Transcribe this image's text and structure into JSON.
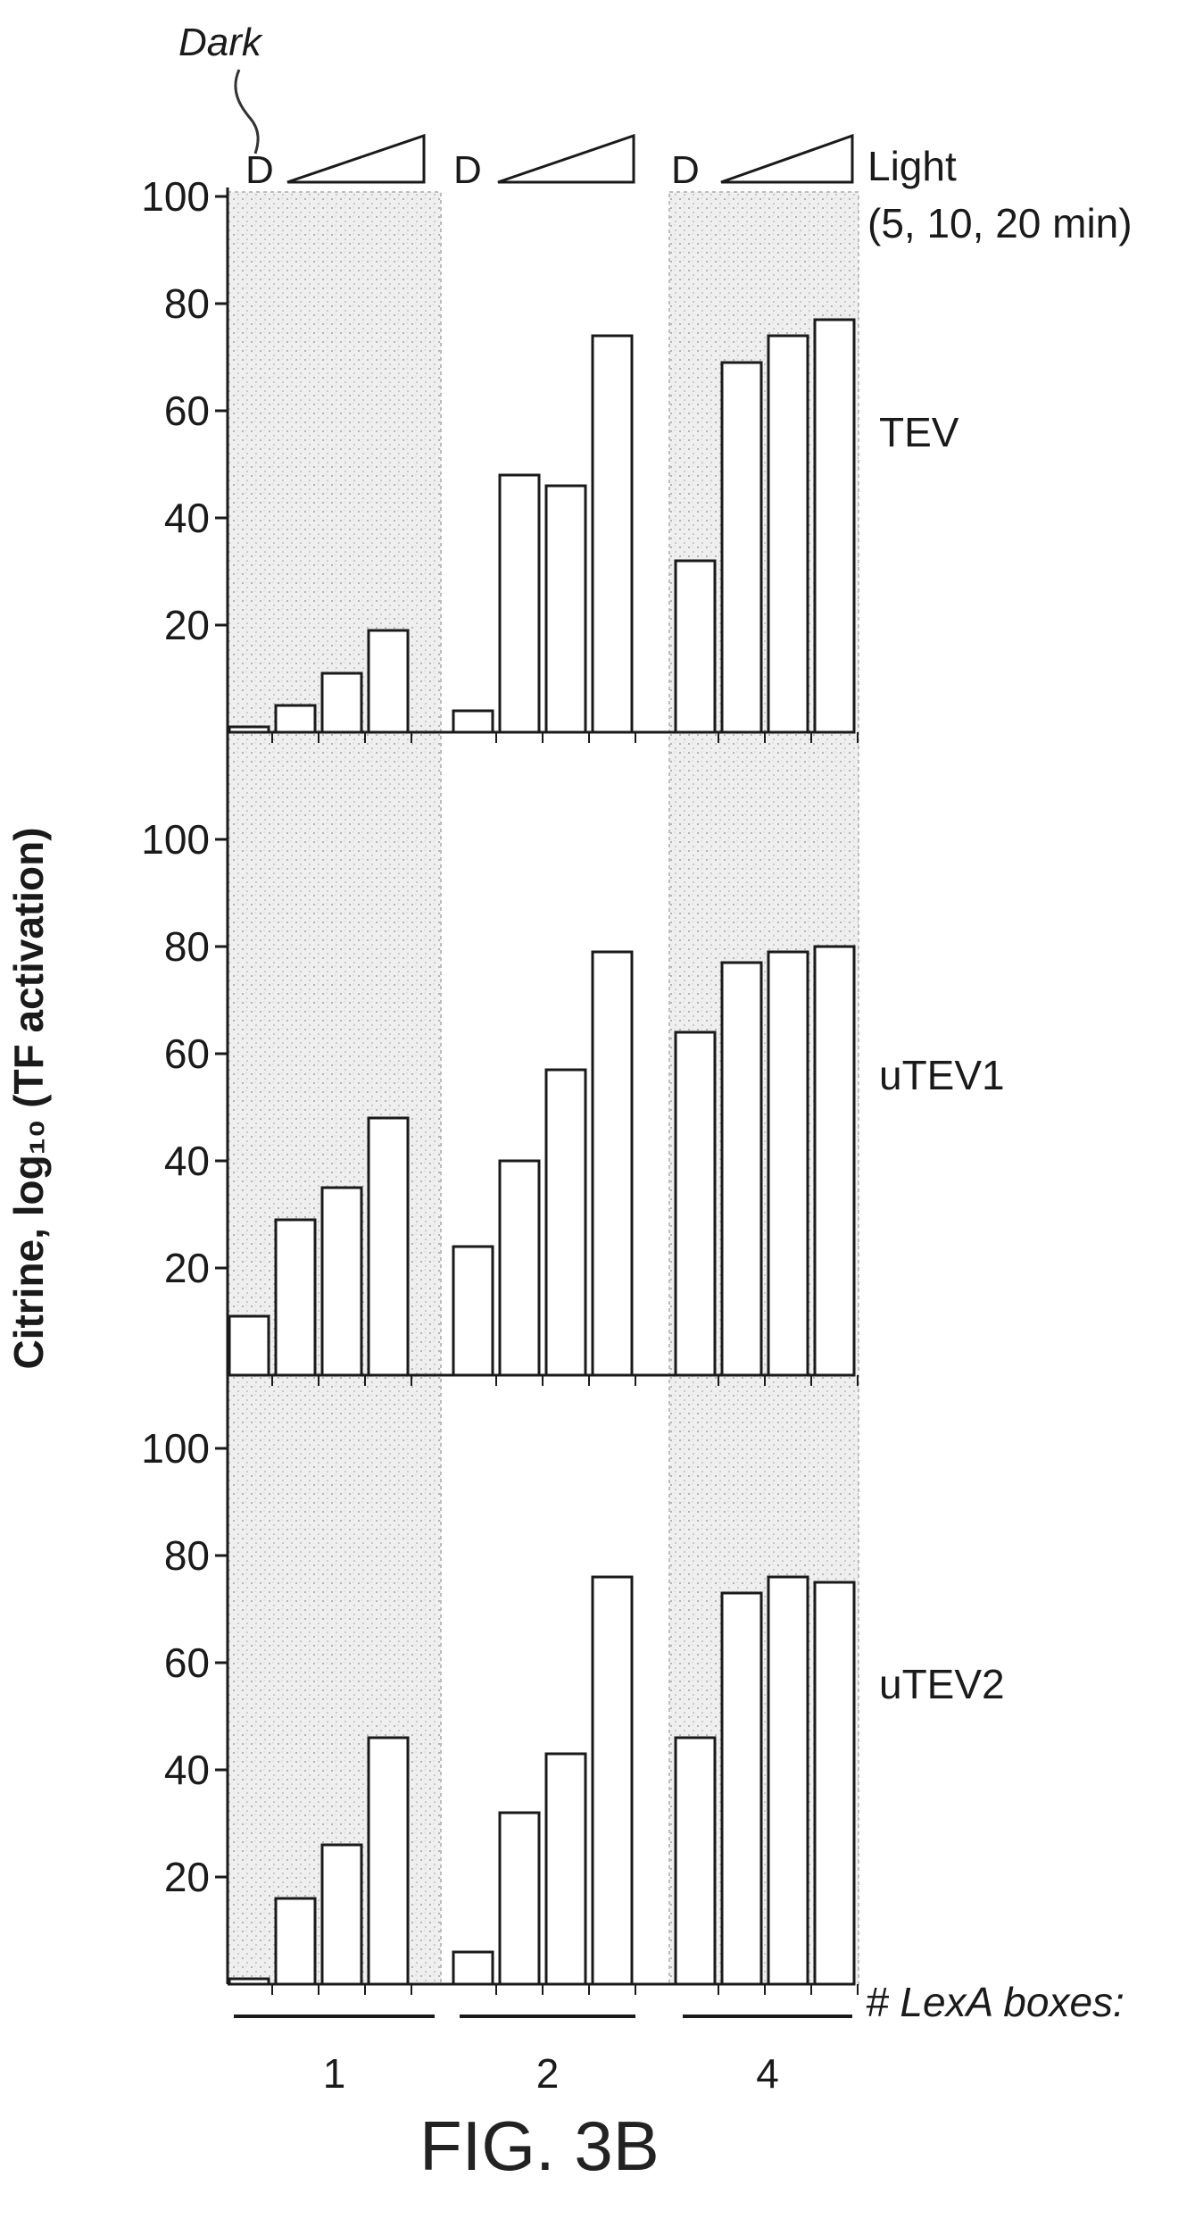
{
  "figure_label": "FIG. 3B",
  "chart_data": {
    "type": "bar",
    "ylabel": "Citrine, log₁₀ (TF activation)",
    "xlabel": "# LexA boxes:",
    "groups": [
      "1",
      "2",
      "4"
    ],
    "bars_per_group": [
      "D",
      "5 min",
      "10 min",
      "20 min"
    ],
    "dark_marker": "D",
    "dark_annotation": "Dark",
    "light_label": "Light",
    "light_sub": "(5, 10, 20 min)",
    "ylim": [
      0,
      100
    ],
    "yticks": [
      20,
      40,
      60,
      80,
      100
    ],
    "shaded_groups": [
      0,
      2
    ],
    "panels": [
      {
        "name": "TEV",
        "values": [
          [
            1,
            5,
            11,
            19
          ],
          [
            4,
            48,
            46,
            74
          ],
          [
            32,
            69,
            74,
            77
          ]
        ]
      },
      {
        "name": "uTEV1",
        "values": [
          [
            11,
            29,
            35,
            48
          ],
          [
            24,
            40,
            57,
            79
          ],
          [
            64,
            77,
            79,
            80
          ]
        ]
      },
      {
        "name": "uTEV2",
        "values": [
          [
            1,
            16,
            26,
            46
          ],
          [
            6,
            32,
            43,
            76
          ],
          [
            46,
            73,
            76,
            75
          ]
        ]
      }
    ]
  }
}
